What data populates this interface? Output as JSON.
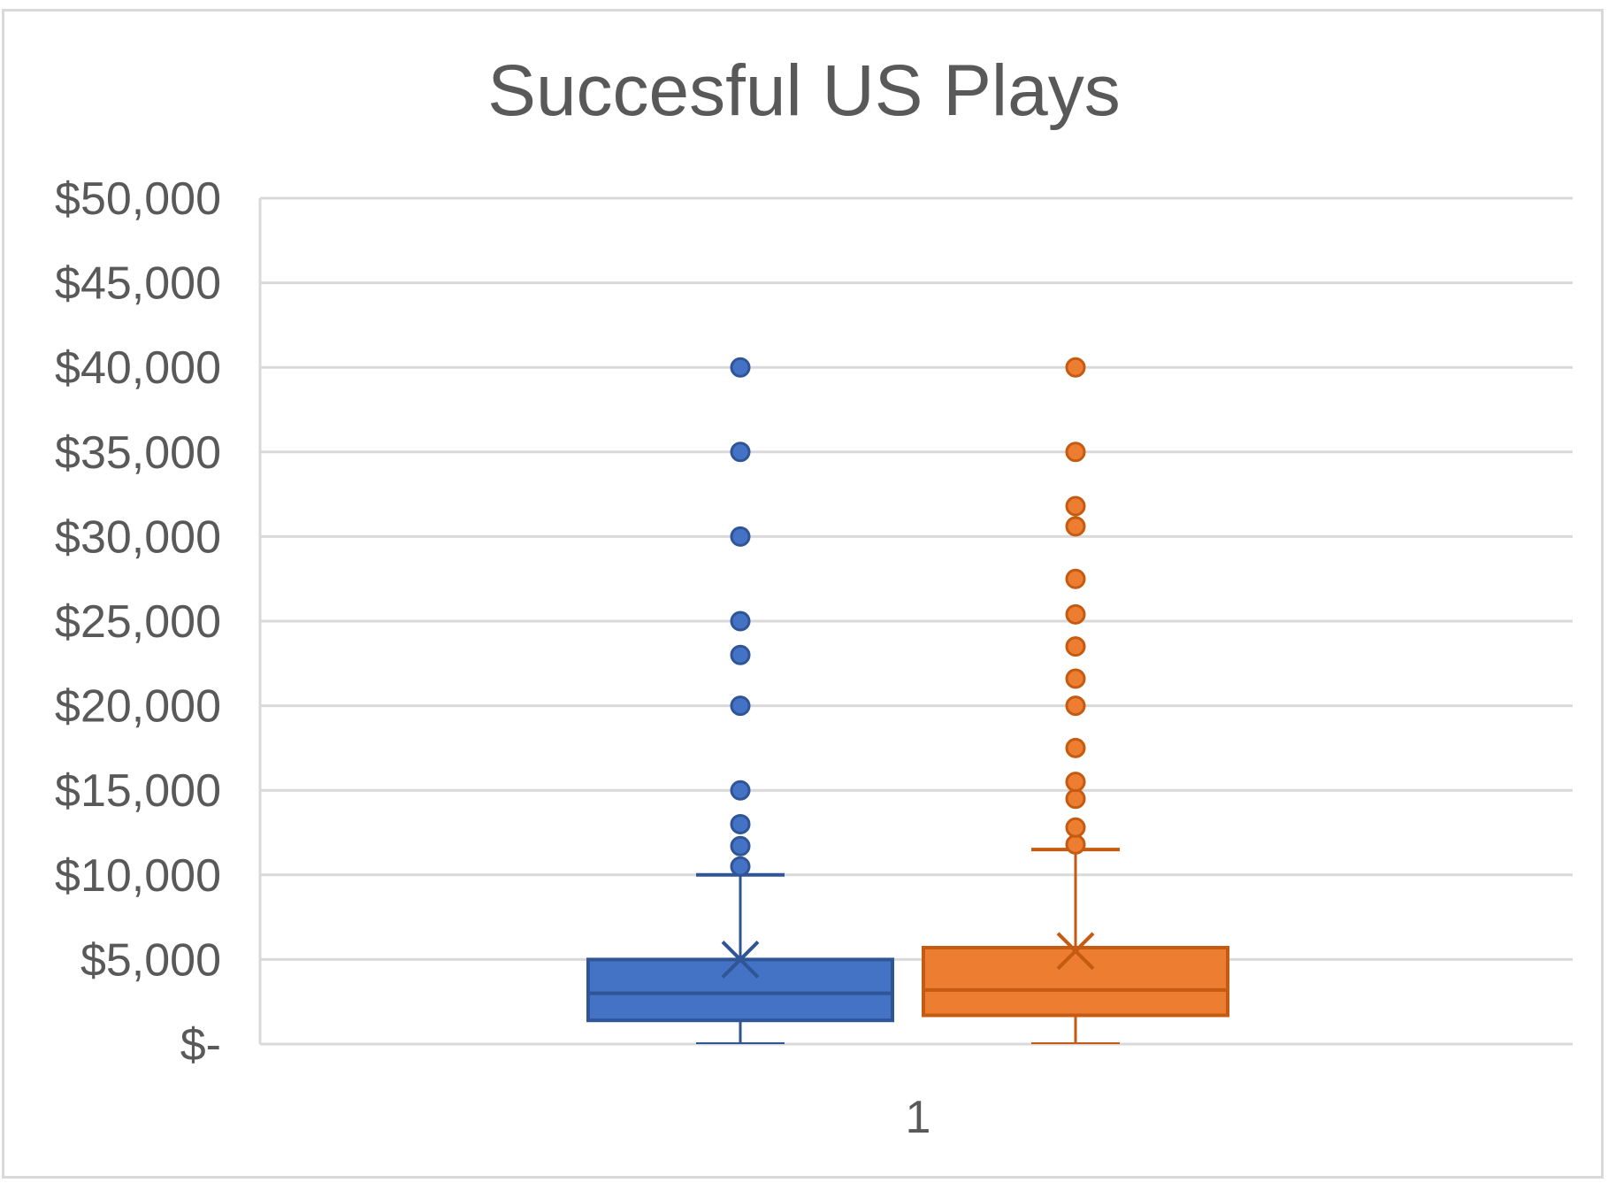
{
  "chart_data": {
    "type": "box",
    "title": "Succesful US Plays",
    "xlabel": "",
    "ylabel": "",
    "categories": [
      "1"
    ],
    "ylim": [
      0,
      50000
    ],
    "yticks": [
      0,
      5000,
      10000,
      15000,
      20000,
      25000,
      30000,
      35000,
      40000,
      45000,
      50000
    ],
    "ytick_labels": [
      "$-",
      "$5,000",
      "$10,000",
      "$15,000",
      "$20,000",
      "$25,000",
      "$30,000",
      "$35,000",
      "$40,000",
      "$45,000",
      "$50,000"
    ],
    "grid": true,
    "legend": "none",
    "series": [
      {
        "color": "#4472C4",
        "edge_color": "#2F5597",
        "whisker_min": 0,
        "q1": 1400,
        "median": 3000,
        "q3": 5000,
        "whisker_max": 10000,
        "mean": 5000,
        "outliers": [
          10500,
          11700,
          13000,
          15000,
          20000,
          23000,
          25000,
          30000,
          35000,
          40000
        ]
      },
      {
        "color": "#ED7D31",
        "edge_color": "#C55A11",
        "whisker_min": 0,
        "q1": 1700,
        "median": 3200,
        "q3": 5700,
        "whisker_max": 11500,
        "mean": 5500,
        "outliers": [
          11800,
          12800,
          14500,
          15500,
          17500,
          20000,
          21600,
          23500,
          25400,
          27500,
          30600,
          31800,
          35000,
          40000
        ]
      }
    ]
  }
}
